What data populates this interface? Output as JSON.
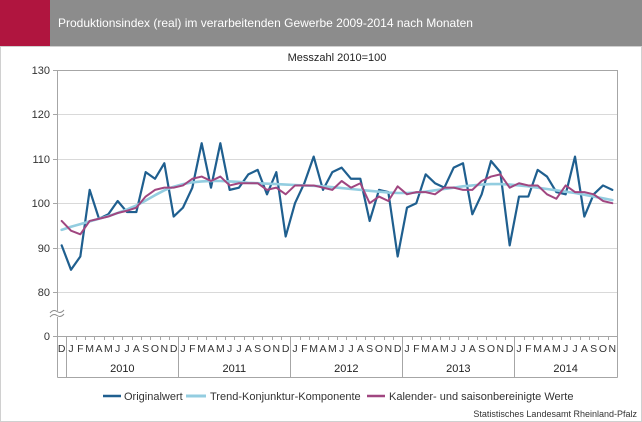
{
  "chart_data": {
    "type": "line",
    "title": "Produktionsindex (real) im verarbeitenden Gewerbe 2009-2014 nach Monaten",
    "subtitle": "Messzahl 2010=100",
    "xlabel": "",
    "ylabel": "",
    "ylim": [
      80,
      130
    ],
    "y_ticks": [
      0,
      80,
      90,
      100,
      110,
      120,
      130
    ],
    "y_axis_break": true,
    "grid": true,
    "legend_position": "bottom",
    "x": [
      "2009-12",
      "2010-01",
      "2010-02",
      "2010-03",
      "2010-04",
      "2010-05",
      "2010-06",
      "2010-07",
      "2010-08",
      "2010-09",
      "2010-10",
      "2010-11",
      "2010-12",
      "2011-01",
      "2011-02",
      "2011-03",
      "2011-04",
      "2011-05",
      "2011-06",
      "2011-07",
      "2011-08",
      "2011-09",
      "2011-10",
      "2011-11",
      "2011-12",
      "2012-01",
      "2012-02",
      "2012-03",
      "2012-04",
      "2012-05",
      "2012-06",
      "2012-07",
      "2012-08",
      "2012-09",
      "2012-10",
      "2012-11",
      "2012-12",
      "2013-01",
      "2013-02",
      "2013-03",
      "2013-04",
      "2013-05",
      "2013-06",
      "2013-07",
      "2013-08",
      "2013-09",
      "2013-10",
      "2013-11",
      "2013-12",
      "2014-01",
      "2014-02",
      "2014-03",
      "2014-04",
      "2014-05",
      "2014-06",
      "2014-07",
      "2014-08",
      "2014-09",
      "2014-10",
      "2014-11"
    ],
    "month_labels": [
      "D",
      "J",
      "F",
      "M",
      "A",
      "M",
      "J",
      "J",
      "A",
      "S",
      "O",
      "N",
      "D",
      "J",
      "F",
      "M",
      "A",
      "M",
      "J",
      "J",
      "A",
      "S",
      "O",
      "N",
      "D",
      "J",
      "F",
      "M",
      "A",
      "M",
      "J",
      "J",
      "A",
      "S",
      "O",
      "N",
      "D",
      "J",
      "F",
      "M",
      "A",
      "M",
      "J",
      "J",
      "A",
      "S",
      "O",
      "N",
      "D",
      "J",
      "F",
      "M",
      "A",
      "M",
      "J",
      "J",
      "A",
      "S",
      "O",
      "N"
    ],
    "year_labels": [
      "2010",
      "2011",
      "2012",
      "2013",
      "2014"
    ],
    "series": [
      {
        "name": "Originalwert",
        "color": "#1f5f8f",
        "values": [
          90.5,
          85,
          88,
          103,
          96.5,
          97.5,
          100.5,
          98,
          98,
          107,
          105.5,
          109,
          97,
          99,
          103.5,
          113.5,
          103.5,
          113.5,
          103,
          103.5,
          106.5,
          107.5,
          102,
          107,
          92.5,
          100,
          104.5,
          110.5,
          103,
          107,
          108,
          105.5,
          105.5,
          96,
          103,
          102.5,
          88,
          99,
          100,
          106.5,
          104.5,
          103.5,
          108,
          109,
          97.5,
          102,
          109.5,
          107,
          90.5,
          101.5,
          101.5,
          107.5,
          106,
          102.5,
          102,
          110.5,
          97,
          102,
          104,
          103
        ]
      },
      {
        "name": "Trend-Konjunktur-Komponente",
        "color": "#93cde0",
        "values": [
          94,
          94.7,
          95.3,
          95.9,
          96.5,
          97.1,
          97.8,
          98.6,
          99.5,
          100.6,
          101.8,
          102.9,
          103.7,
          104.3,
          104.7,
          104.9,
          105,
          105,
          104.9,
          104.8,
          104.6,
          104.5,
          104.4,
          104.3,
          104.2,
          104.1,
          104,
          103.9,
          103.8,
          103.6,
          103.4,
          103.2,
          103,
          102.8,
          102.6,
          102.4,
          102.3,
          102.3,
          102.4,
          102.6,
          102.9,
          103.2,
          103.5,
          103.8,
          104,
          104.2,
          104.3,
          104.3,
          104.2,
          104,
          103.8,
          103.5,
          103.2,
          102.9,
          102.6,
          102.3,
          101.9,
          101.5,
          101.1,
          100.7
        ]
      },
      {
        "name": "Kalender- und saisonbereinigte Werte",
        "color": "#a04680",
        "values": [
          96,
          93.8,
          93,
          96,
          96.5,
          97,
          97.8,
          98.3,
          99,
          101.5,
          103,
          103.5,
          103.5,
          104,
          105.5,
          106,
          105,
          106,
          104,
          104.5,
          104.5,
          104.5,
          103,
          103.5,
          102,
          104,
          104,
          104,
          103.5,
          103,
          105,
          103.5,
          104.5,
          100,
          101.5,
          100.5,
          103.8,
          102,
          102.5,
          102.5,
          102,
          103.5,
          103.5,
          103,
          103,
          105,
          106,
          106.5,
          103.5,
          104.5,
          104,
          104,
          102,
          101,
          104,
          102.5,
          102.5,
          102,
          100.5,
          100
        ]
      }
    ]
  },
  "header": {
    "accent_color": "#b0153f",
    "bar_color": "#8c8c8c"
  },
  "source": "Statistisches Landesamt Rheinland-Pfalz"
}
